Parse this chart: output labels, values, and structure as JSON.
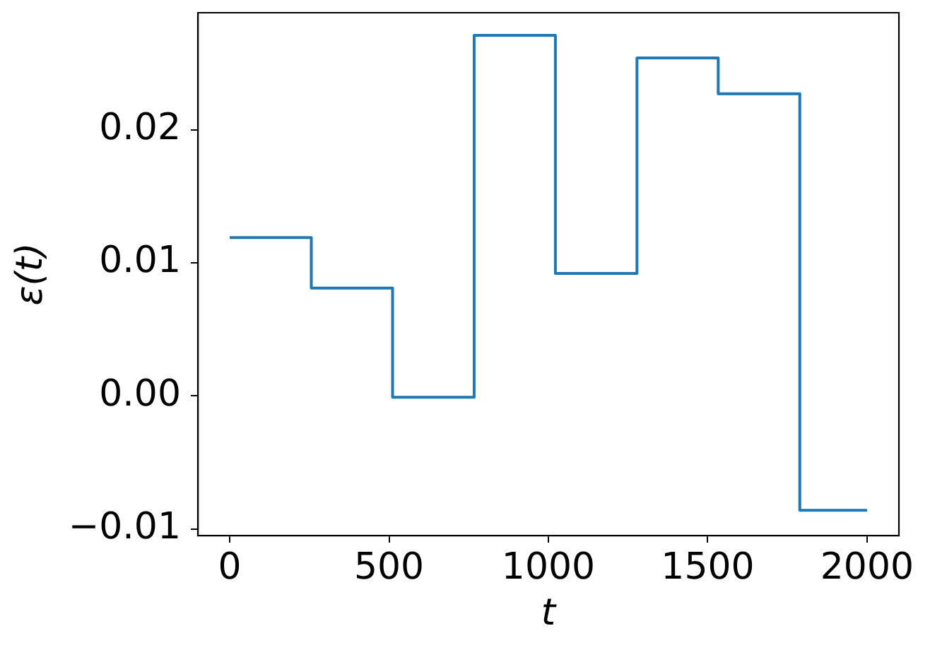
{
  "chart_data": {
    "type": "step",
    "xlabel": "t",
    "ylabel": "ε(t)",
    "x": [
      0,
      256,
      511,
      767,
      1022,
      1278,
      1533,
      1789,
      2000
    ],
    "values": [
      0.0119,
      0.0081,
      -0.0001,
      0.0271,
      0.0092,
      0.0254,
      0.0227,
      -0.0086,
      -0.0086
    ],
    "color": "#1f77b4",
    "xlim": [
      -100,
      2100
    ],
    "ylim": [
      -0.0105,
      0.0288
    ],
    "xticks": [
      0,
      500,
      1000,
      1500,
      2000
    ],
    "yticks": [
      {
        "value": -0.01,
        "label": "−0.01"
      },
      {
        "value": 0,
        "label": "0.00"
      },
      0.01,
      0.02
    ]
  }
}
